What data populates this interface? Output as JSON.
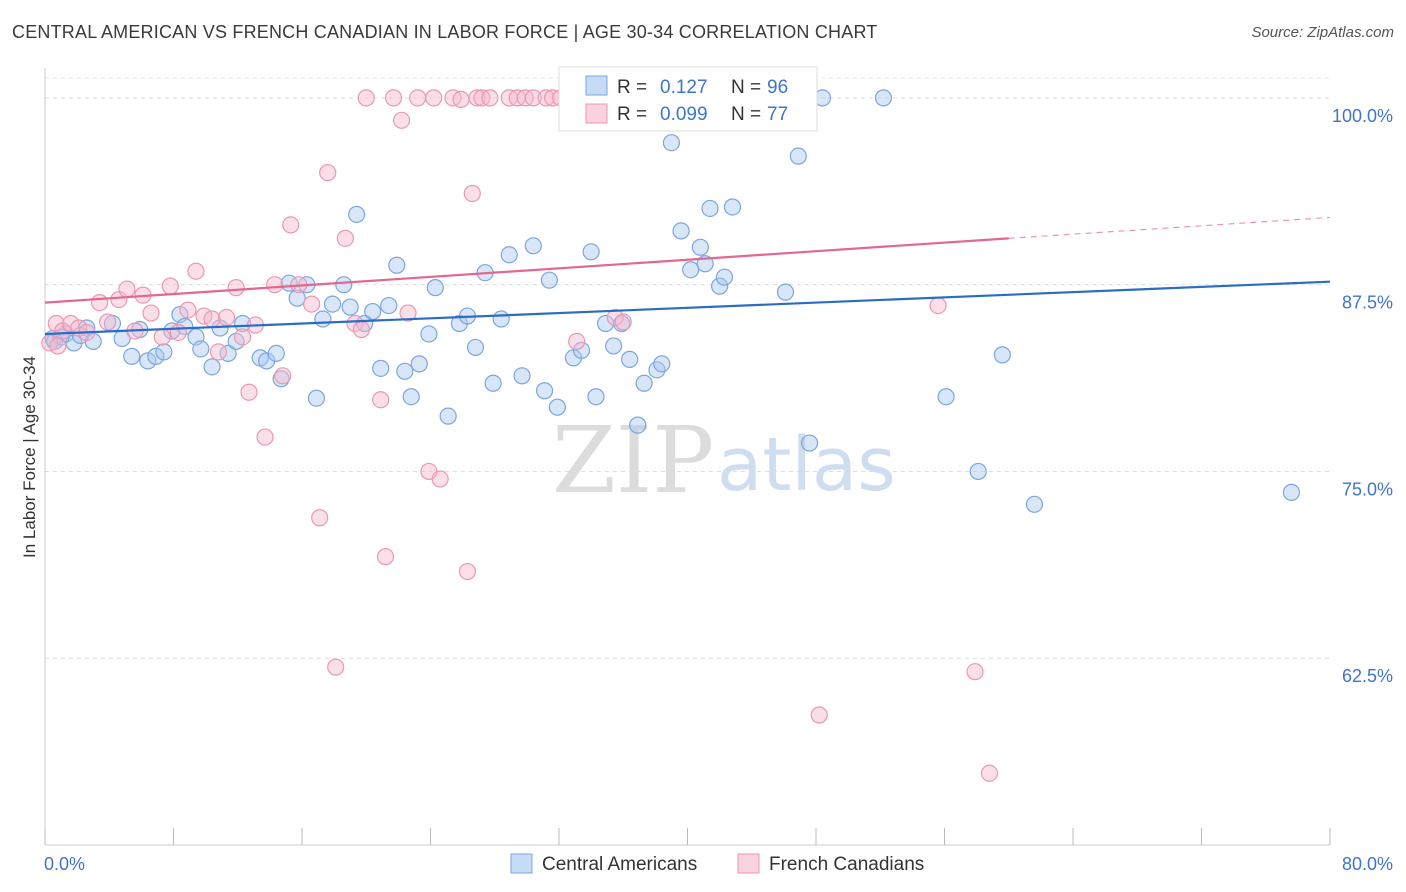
{
  "title": "CENTRAL AMERICAN VS FRENCH CANADIAN IN LABOR FORCE | AGE 30-34 CORRELATION CHART",
  "source": "Source: ZipAtlas.com",
  "watermark": {
    "zip": "ZIP",
    "atlas": "atlas"
  },
  "legend_top": {
    "r_label": "R =",
    "n_label": "N =",
    "rows": [
      {
        "r": "0.127",
        "n": "96",
        "color": "#a9c8ef"
      },
      {
        "r": "0.099",
        "n": "77",
        "color": "#f7b8cb"
      }
    ]
  },
  "chart_data": {
    "type": "scatter",
    "title": "CENTRAL AMERICAN VS FRENCH CANADIAN IN LABOR FORCE | AGE 30-34 CORRELATION CHART",
    "xlabel": "",
    "ylabel": "In Labor Force | Age 30-34",
    "xlim": [
      0,
      80
    ],
    "ylim": [
      50,
      102
    ],
    "x_tick_labels": [
      "0.0%",
      "80.0%"
    ],
    "y_ticks": [
      62.5,
      75.0,
      87.5,
      100.0
    ],
    "y_tick_labels": [
      "62.5%",
      "75.0%",
      "87.5%",
      "100.0%"
    ],
    "grid": true,
    "legend_position": "bottom",
    "series": [
      {
        "name": "Central Americans",
        "color": "#a9c8ef",
        "stroke": "#7aa6df",
        "trend_color": "#2b6cc4",
        "trend": [
          [
            0,
            84.2
          ],
          [
            80,
            87.7
          ]
        ],
        "points": [
          [
            0.5,
            83.9
          ],
          [
            1.3,
            84.2
          ],
          [
            1.8,
            83.6
          ],
          [
            2.6,
            84.6
          ],
          [
            3.0,
            83.7
          ],
          [
            4.2,
            84.9
          ],
          [
            4.8,
            83.9
          ],
          [
            5.4,
            82.7
          ],
          [
            5.9,
            84.5
          ],
          [
            6.4,
            82.4
          ],
          [
            6.9,
            82.7
          ],
          [
            7.4,
            83.0
          ],
          [
            7.9,
            84.4
          ],
          [
            8.4,
            85.5
          ],
          [
            8.7,
            84.7
          ],
          [
            9.4,
            84.0
          ],
          [
            9.7,
            83.2
          ],
          [
            10.4,
            82.0
          ],
          [
            10.9,
            84.6
          ],
          [
            11.4,
            82.9
          ],
          [
            11.9,
            83.7
          ],
          [
            12.3,
            84.9
          ],
          [
            13.4,
            82.6
          ],
          [
            13.8,
            82.4
          ],
          [
            14.4,
            82.9
          ],
          [
            14.7,
            81.2
          ],
          [
            15.2,
            87.6
          ],
          [
            15.7,
            86.6
          ],
          [
            16.3,
            87.5
          ],
          [
            16.9,
            79.9
          ],
          [
            17.3,
            85.2
          ],
          [
            17.9,
            86.2
          ],
          [
            18.6,
            87.5
          ],
          [
            19.0,
            86.0
          ],
          [
            19.4,
            92.2
          ],
          [
            19.9,
            84.9
          ],
          [
            20.4,
            85.7
          ],
          [
            20.9,
            81.9
          ],
          [
            21.4,
            86.1
          ],
          [
            21.9,
            88.8
          ],
          [
            22.4,
            81.7
          ],
          [
            22.8,
            80.0
          ],
          [
            23.3,
            82.2
          ],
          [
            23.9,
            84.2
          ],
          [
            24.3,
            87.3
          ],
          [
            25.1,
            78.7
          ],
          [
            25.8,
            84.9
          ],
          [
            26.3,
            85.4
          ],
          [
            26.8,
            83.3
          ],
          [
            27.4,
            88.3
          ],
          [
            27.9,
            80.9
          ],
          [
            28.4,
            85.2
          ],
          [
            28.9,
            89.5
          ],
          [
            29.7,
            81.4
          ],
          [
            30.4,
            90.1
          ],
          [
            31.1,
            80.4
          ],
          [
            31.4,
            87.8
          ],
          [
            31.9,
            79.3
          ],
          [
            32.9,
            82.6
          ],
          [
            33.4,
            83.1
          ],
          [
            34.0,
            89.7
          ],
          [
            34.3,
            80.0
          ],
          [
            34.9,
            84.9
          ],
          [
            35.4,
            83.4
          ],
          [
            35.9,
            84.9
          ],
          [
            36.4,
            82.5
          ],
          [
            36.9,
            78.1
          ],
          [
            37.3,
            80.9
          ],
          [
            38.1,
            81.8
          ],
          [
            38.4,
            82.2
          ],
          [
            39.0,
            97.0
          ],
          [
            39.6,
            91.1
          ],
          [
            40.2,
            88.5
          ],
          [
            40.8,
            90.0
          ],
          [
            41.1,
            88.9
          ],
          [
            41.4,
            92.6
          ],
          [
            42.0,
            87.4
          ],
          [
            42.3,
            88.0
          ],
          [
            42.8,
            92.7
          ],
          [
            43.6,
            100.0
          ],
          [
            44.6,
            100.0
          ],
          [
            45.5,
            100.0
          ],
          [
            46.1,
            87.0
          ],
          [
            46.6,
            100.0
          ],
          [
            46.9,
            96.1
          ],
          [
            47.6,
            76.9
          ],
          [
            48.4,
            100.0
          ],
          [
            52.2,
            100.0
          ],
          [
            56.1,
            80.0
          ],
          [
            58.1,
            75.0
          ],
          [
            59.6,
            82.8
          ],
          [
            61.6,
            72.8
          ],
          [
            77.6,
            73.6
          ],
          [
            0.6,
            83.7
          ],
          [
            1.0,
            84.0
          ],
          [
            2.2,
            84.1
          ]
        ]
      },
      {
        "name": "French Canadians",
        "color": "#f7b8cb",
        "stroke": "#ec97b1",
        "trend_color": "#e2688f",
        "trend": [
          [
            0,
            86.3
          ],
          [
            60,
            90.6
          ]
        ],
        "trend_dashed": [
          [
            60,
            90.6
          ],
          [
            80,
            92.0
          ]
        ],
        "points": [
          [
            0.3,
            83.6
          ],
          [
            0.7,
            84.9
          ],
          [
            1.1,
            84.4
          ],
          [
            1.6,
            84.9
          ],
          [
            2.1,
            84.6
          ],
          [
            2.6,
            84.3
          ],
          [
            3.4,
            86.3
          ],
          [
            3.9,
            85.0
          ],
          [
            4.6,
            86.5
          ],
          [
            5.1,
            87.2
          ],
          [
            5.6,
            84.4
          ],
          [
            6.1,
            86.8
          ],
          [
            6.6,
            85.6
          ],
          [
            7.3,
            84.0
          ],
          [
            7.8,
            87.4
          ],
          [
            8.3,
            84.3
          ],
          [
            8.9,
            85.8
          ],
          [
            9.4,
            88.4
          ],
          [
            9.9,
            85.4
          ],
          [
            10.4,
            85.2
          ],
          [
            10.8,
            83.0
          ],
          [
            11.3,
            85.3
          ],
          [
            11.9,
            87.3
          ],
          [
            12.3,
            84.0
          ],
          [
            12.7,
            80.3
          ],
          [
            13.1,
            84.8
          ],
          [
            13.7,
            77.3
          ],
          [
            14.3,
            87.5
          ],
          [
            14.8,
            81.4
          ],
          [
            15.3,
            91.5
          ],
          [
            15.8,
            87.5
          ],
          [
            16.6,
            86.2
          ],
          [
            17.1,
            71.9
          ],
          [
            17.6,
            95.0
          ],
          [
            18.1,
            61.9
          ],
          [
            18.7,
            90.6
          ],
          [
            19.3,
            84.9
          ],
          [
            19.7,
            84.5
          ],
          [
            20.0,
            100.0
          ],
          [
            20.9,
            79.8
          ],
          [
            21.2,
            69.3
          ],
          [
            21.7,
            100.0
          ],
          [
            22.2,
            98.5
          ],
          [
            22.6,
            85.6
          ],
          [
            23.2,
            100.0
          ],
          [
            23.9,
            75.0
          ],
          [
            24.2,
            100.0
          ],
          [
            24.6,
            74.5
          ],
          [
            25.4,
            100.0
          ],
          [
            25.9,
            99.9
          ],
          [
            26.3,
            68.3
          ],
          [
            26.6,
            93.6
          ],
          [
            26.9,
            100.0
          ],
          [
            27.2,
            100.0
          ],
          [
            27.7,
            100.0
          ],
          [
            28.9,
            100.0
          ],
          [
            29.4,
            100.0
          ],
          [
            29.9,
            100.0
          ],
          [
            30.4,
            100.0
          ],
          [
            31.2,
            100.0
          ],
          [
            31.6,
            100.0
          ],
          [
            32.1,
            100.0
          ],
          [
            32.5,
            100.0
          ],
          [
            33.1,
            83.7
          ],
          [
            34.4,
            100.0
          ],
          [
            35.1,
            100.0
          ],
          [
            35.5,
            85.3
          ],
          [
            36.0,
            85.0
          ],
          [
            36.8,
            100.0
          ],
          [
            37.6,
            100.0
          ],
          [
            38.3,
            100.0
          ],
          [
            39.4,
            100.0
          ],
          [
            48.2,
            58.7
          ],
          [
            55.6,
            86.1
          ],
          [
            57.9,
            61.6
          ],
          [
            58.8,
            54.8
          ],
          [
            0.8,
            83.4
          ]
        ]
      }
    ]
  }
}
